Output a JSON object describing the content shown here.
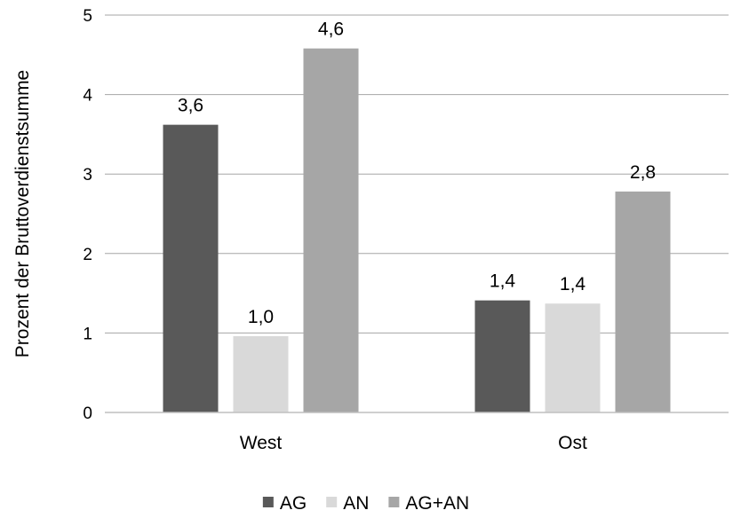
{
  "chart_data": {
    "type": "bar",
    "categories": [
      "West",
      "Ost"
    ],
    "series": [
      {
        "name": "AG",
        "values": [
          3.62,
          1.41
        ],
        "labels": [
          "3,6",
          "1,4"
        ],
        "color": "#595959"
      },
      {
        "name": "AN",
        "values": [
          0.96,
          1.37
        ],
        "labels": [
          "1,0",
          "1,4"
        ],
        "color": "#d9d9d9"
      },
      {
        "name": "AG+AN",
        "values": [
          4.58,
          2.78
        ],
        "labels": [
          "4,6",
          "2,8"
        ],
        "color": "#a6a6a6"
      }
    ],
    "ylabel": "Prozent  der Bruttoverdienstsumme",
    "ylim": [
      0,
      5
    ],
    "yticks": [
      "0",
      "1",
      "2",
      "3",
      "4",
      "5"
    ],
    "grid": true,
    "legend_position": "bottom"
  }
}
